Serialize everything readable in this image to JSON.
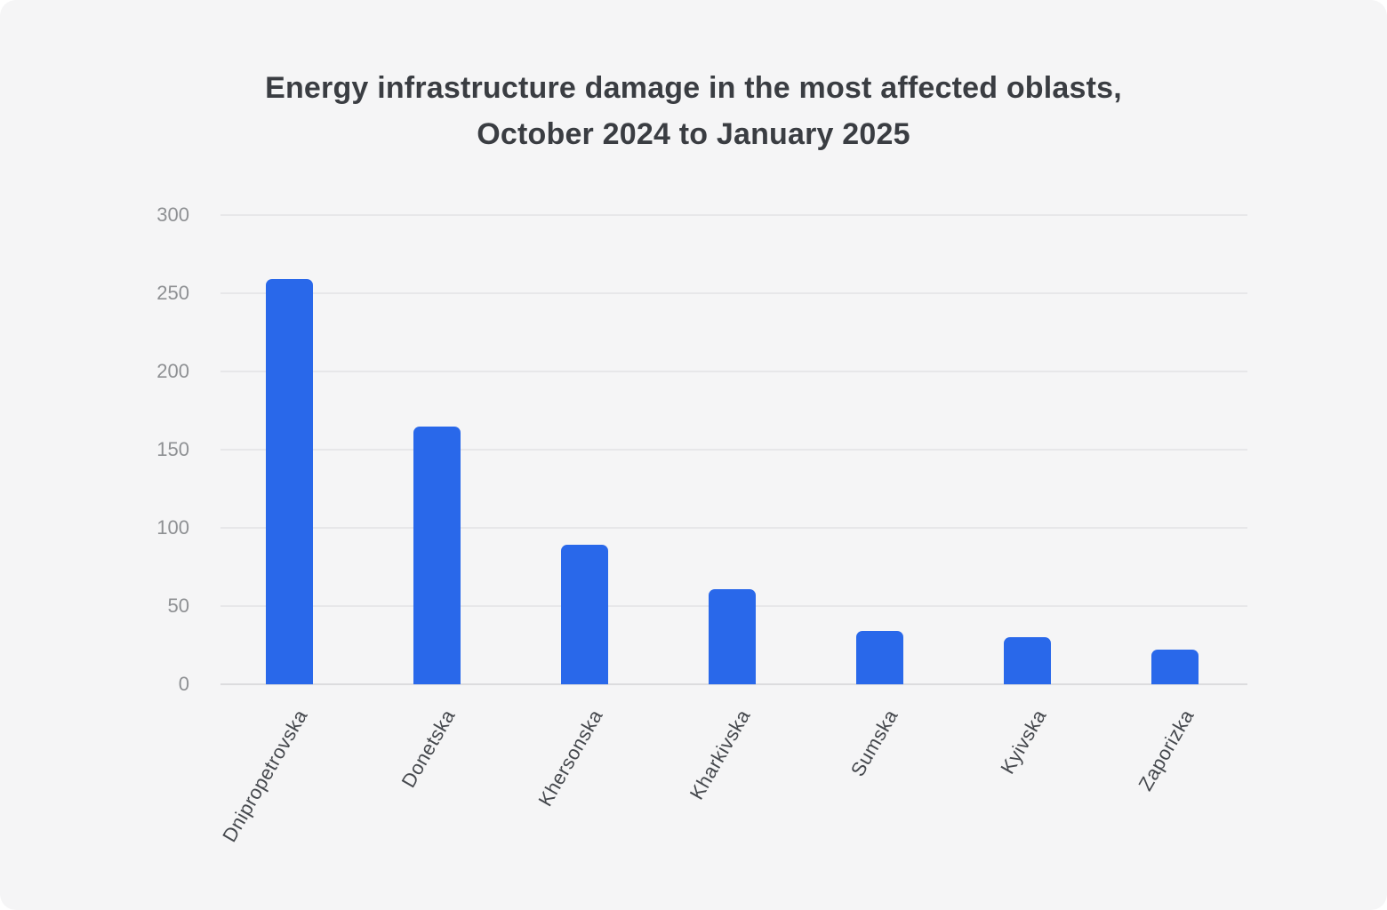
{
  "chart_data": {
    "type": "bar",
    "title": "Energy infrastructure damage in the most affected oblasts, October 2024 to January 2025",
    "title_lines": [
      "Energy infrastructure damage in the most affected oblasts,",
      "October 2024 to January 2025"
    ],
    "categories": [
      "Dnipropetrovska",
      "Donetska",
      "Khersonska",
      "Kharkivska",
      "Sumska",
      "Kyivska",
      "Zaporizka"
    ],
    "values": [
      259,
      165,
      89,
      61,
      34,
      30,
      22
    ],
    "xlabel": "",
    "ylabel": "",
    "ylim": [
      0,
      300
    ],
    "yticks": [
      0,
      50,
      100,
      150,
      200,
      250,
      300
    ],
    "grid": true,
    "legend": false,
    "colors": {
      "bar": "#2968ea",
      "background": "#f5f5f6",
      "gridline": "#e7e7e9",
      "zero_line": "#dcdcde",
      "title_text": "#3a3d42",
      "ytick_text": "#8e9093",
      "xtick_text": "#45484d"
    }
  }
}
